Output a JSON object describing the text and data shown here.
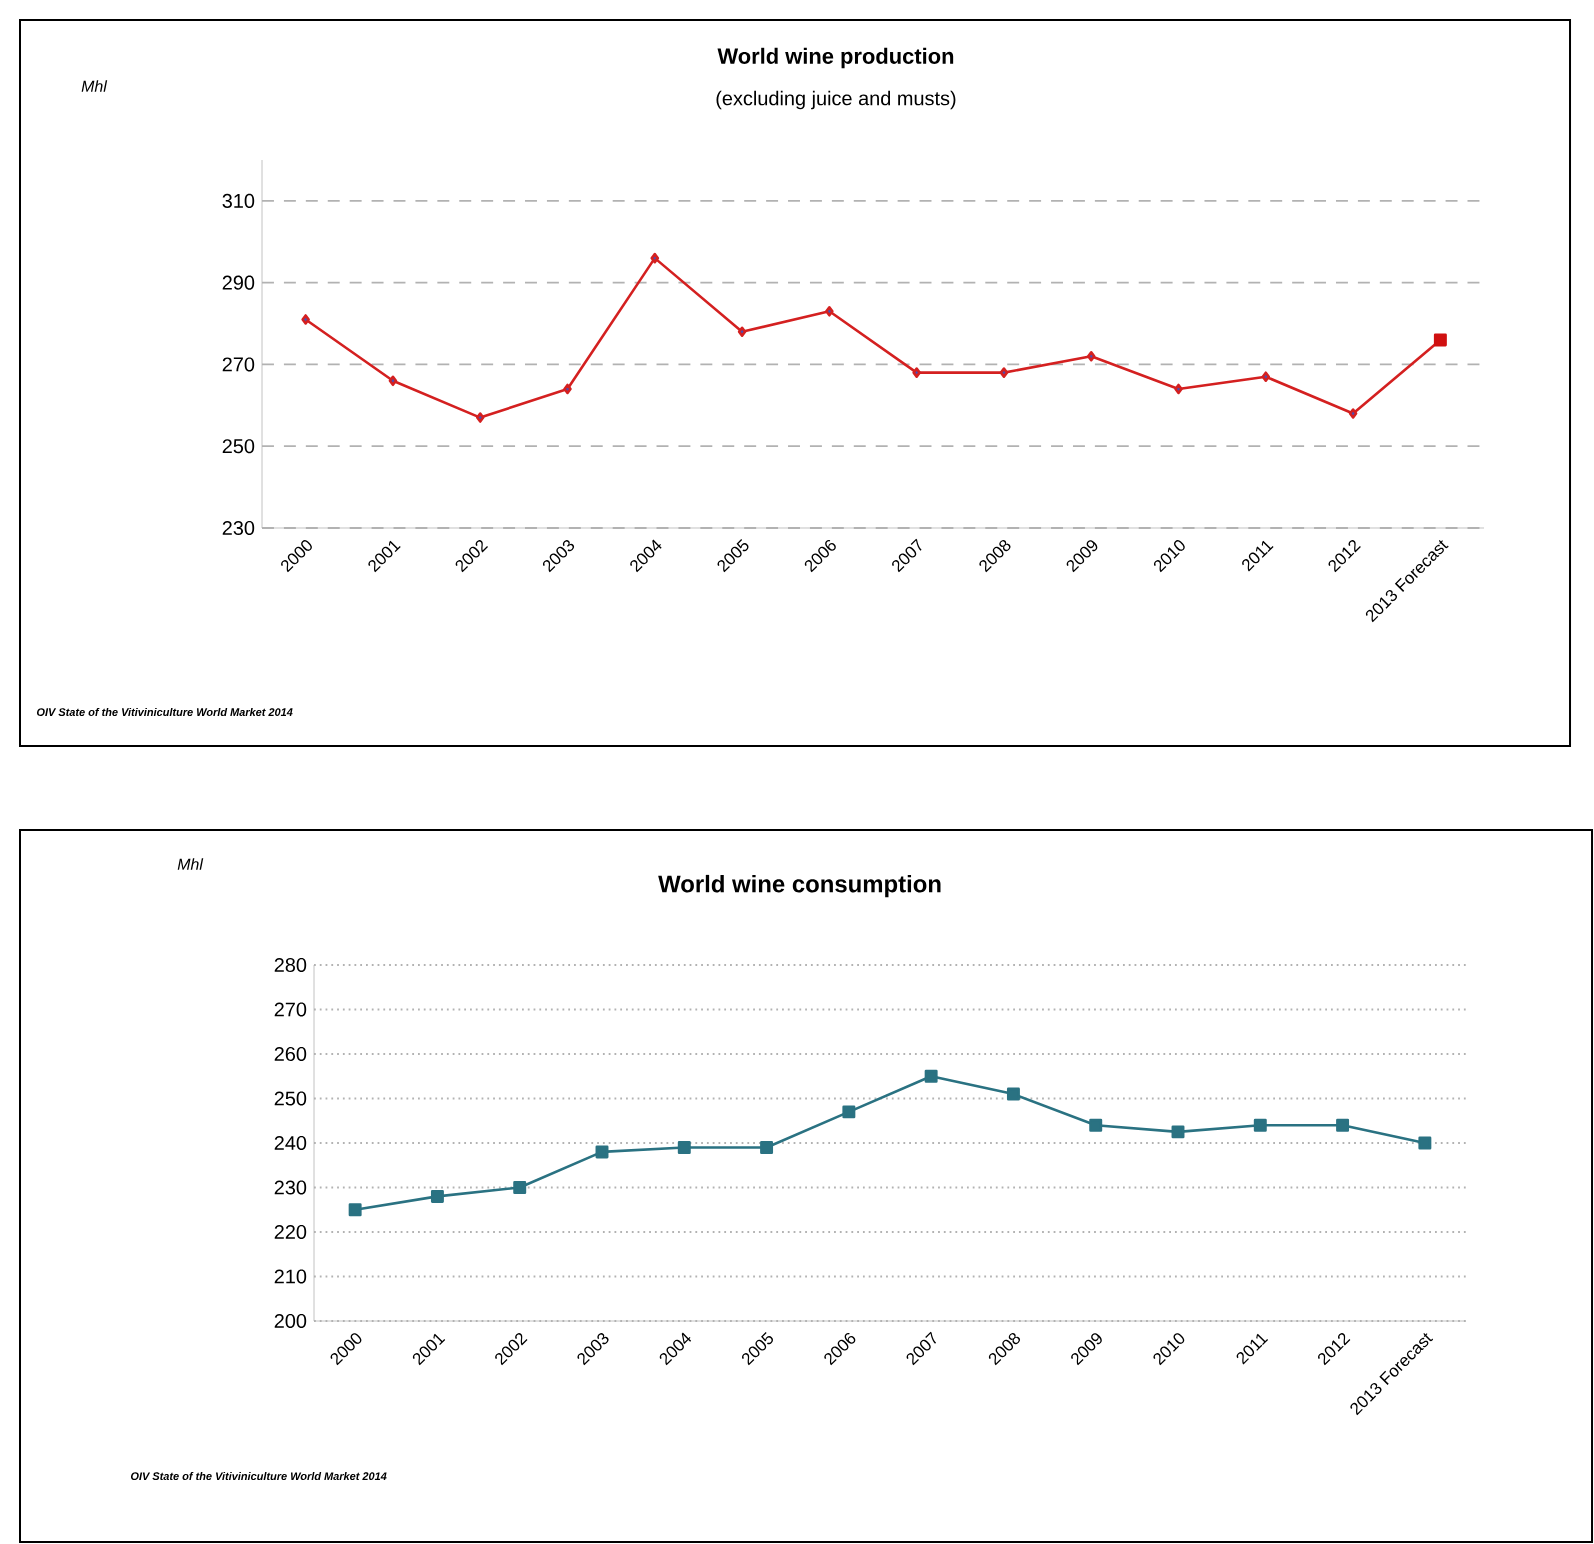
{
  "chart_data": [
    {
      "type": "line",
      "title": "World wine production",
      "subtitle": "(excluding juice and musts)",
      "ylabel": "Mhl",
      "annotations": [
        "OIV State of the Vitiviniculture  World Market  2014"
      ],
      "categories": [
        "2000",
        "2001",
        "2002",
        "2003",
        "2004",
        "2005",
        "2006",
        "2007",
        "2008",
        "2009",
        "2010",
        "2011",
        "2012",
        "2013 Forecast"
      ],
      "series": [
        {
          "color": "#d42020",
          "marker": "diamond",
          "values": [
            281,
            266,
            257,
            264,
            296,
            278,
            283,
            268,
            268,
            272,
            264,
            267,
            258,
            276
          ]
        },
        {
          "type": "scatter",
          "color": "#d01010",
          "marker": "square",
          "values": [
            null,
            null,
            null,
            null,
            null,
            null,
            null,
            null,
            null,
            null,
            null,
            null,
            null,
            276
          ]
        }
      ],
      "ylim": [
        230,
        320
      ],
      "yticks": [
        230,
        250,
        270,
        290,
        310
      ],
      "grid": "y"
    },
    {
      "type": "line",
      "title": "World wine consumption",
      "ylabel": "Mhl",
      "annotations": [
        "OIV State of the Vitiviniculture  World Market  2014"
      ],
      "categories": [
        "2000",
        "2001",
        "2002",
        "2003",
        "2004",
        "2005",
        "2006",
        "2007",
        "2008",
        "2009",
        "2010",
        "2011",
        "2012",
        "2013 Forecast"
      ],
      "series": [
        {
          "color": "#2a7282",
          "marker": "square",
          "values": [
            225,
            228,
            230,
            238,
            239,
            239,
            247,
            255,
            251,
            244,
            242.5,
            244,
            244,
            240
          ]
        }
      ],
      "ylim": [
        200,
        280
      ],
      "yticks": [
        200,
        210,
        220,
        230,
        240,
        250,
        260,
        270,
        280
      ],
      "grid": "y"
    }
  ]
}
